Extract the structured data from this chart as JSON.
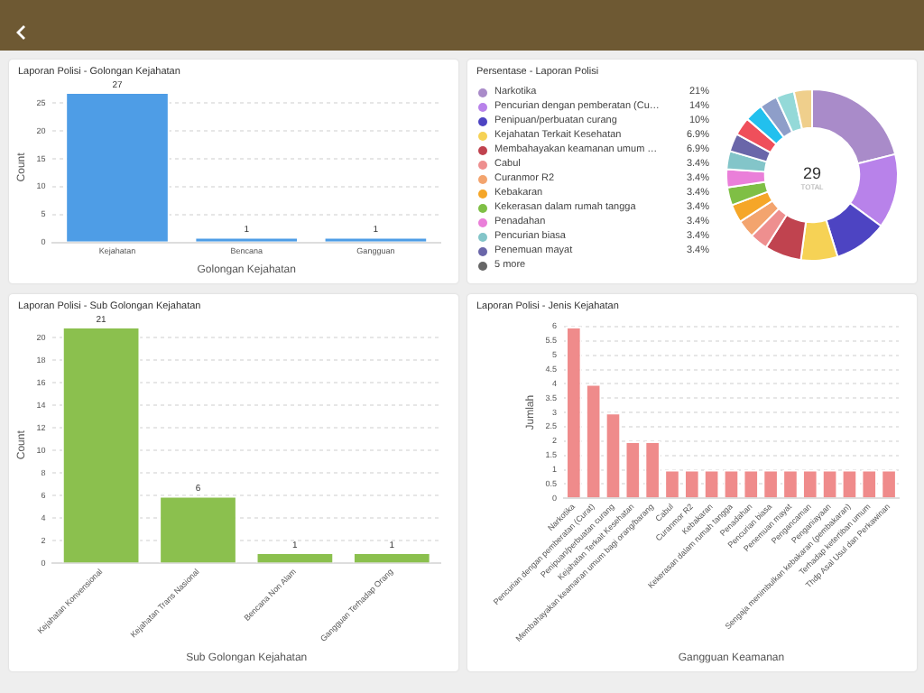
{
  "chart_data": [
    {
      "type": "bar",
      "title": "Laporan Polisi - Golongan Kejahatan",
      "xlabel": "Golongan Kejahatan",
      "ylabel": "Count",
      "categories": [
        "Kejahatan",
        "Bencana",
        "Gangguan"
      ],
      "values": [
        27,
        1,
        1
      ],
      "color": "#4e9de6",
      "ylim": [
        0,
        27
      ],
      "yticks": [
        0,
        5,
        10,
        15,
        20,
        25
      ],
      "grid": "y",
      "data_labels": true,
      "legend": false
    },
    {
      "type": "donut",
      "title": "Persentase - Laporan Polisi",
      "categories": [
        "Narkotika",
        "Pencurian dengan pemberatan (Cu…",
        "Penipuan/perbuatan curang",
        "Kejahatan Terkait Kesehatan",
        "Membahayakan keamanan umum …",
        "Cabul",
        "Curanmor R2",
        "Kebakaran",
        "Kekerasan dalam rumah tangga",
        "Penadahan",
        "Pencurian biasa",
        "Penemuan mayat",
        null,
        null,
        null,
        null,
        null
      ],
      "values": [
        21,
        14,
        10,
        6.9,
        6.9,
        3.4,
        3.4,
        3.4,
        3.4,
        3.4,
        3.4,
        3.4,
        3.4,
        3.4,
        3.4,
        3.4,
        3.4
      ],
      "value_labels": [
        "21%",
        "14%",
        "10%",
        "6.9%",
        "6.9%",
        "3.4%",
        "3.4%",
        "3.4%",
        "3.4%",
        "3.4%",
        "3.4%",
        "3.4%",
        null,
        null,
        null,
        null,
        null
      ],
      "colors": [
        "#a98bc9",
        "#b882ea",
        "#4d44c2",
        "#f6d255",
        "#c0434f",
        "#ee8f8f",
        "#f3a46e",
        "#f5a628",
        "#7fbf45",
        "#ea7fd9",
        "#83c5c9",
        "#6a66a9",
        "#ef4f5b",
        "#22c0ee",
        "#8e9ec9",
        "#94d9d8",
        "#efcf8c"
      ],
      "legend": "left",
      "annotations": [
        "29",
        "TOTAL",
        "5 more"
      ]
    },
    {
      "type": "bar",
      "title": "Laporan Polisi - Sub Golongan Kejahatan",
      "xlabel": "Sub Golongan Kejahatan",
      "ylabel": "Count",
      "categories": [
        "Kejahatan Konvensional",
        "Kejahatan Trans Nasional",
        "Bencana Non Alam",
        "Gangguan Terhadap Orang"
      ],
      "values": [
        21,
        6,
        1,
        1
      ],
      "color": "#8bc04e",
      "ylim": [
        0,
        21
      ],
      "yticks": [
        0,
        2,
        4,
        6,
        8,
        10,
        12,
        14,
        16,
        18,
        20
      ],
      "grid": "y",
      "data_labels": true,
      "legend": false
    },
    {
      "type": "bar",
      "title": "Laporan Polisi - Jenis Kejahatan",
      "xlabel": "Gangguan Keamanan",
      "ylabel": "Jumlah",
      "categories": [
        "Narkotika",
        "Pencurian dengan pemberatan (Curat)",
        "Penipuan/perbuatan curang",
        "Kejahatan Terkait Kesehatan",
        "Membahayakan keamanan umum bagi orang/barang",
        "Cabul",
        "Curanmor R2",
        "Kebakaran",
        "Kekerasan dalam rumah tangga",
        "Penadahan",
        "Pencurian biasa",
        "Penemuan mayat",
        "Pengancaman",
        "Penganiayaan",
        "Sengaja menimbulkan kebakaran (pembakaran)",
        "Terhadap ketertiban umum",
        "Thdp Asal Usul dan Perkawinan"
      ],
      "values": [
        6,
        4,
        3,
        2,
        2,
        1,
        1,
        1,
        1,
        1,
        1,
        1,
        1,
        1,
        1,
        1,
        1
      ],
      "color": "#ef8b8b",
      "ylim": [
        0,
        6
      ],
      "yticks": [
        0,
        0.5,
        1,
        1.5,
        2,
        2.5,
        3,
        3.5,
        4,
        4.5,
        5,
        5.5,
        6
      ],
      "grid": "y",
      "legend": false
    }
  ]
}
